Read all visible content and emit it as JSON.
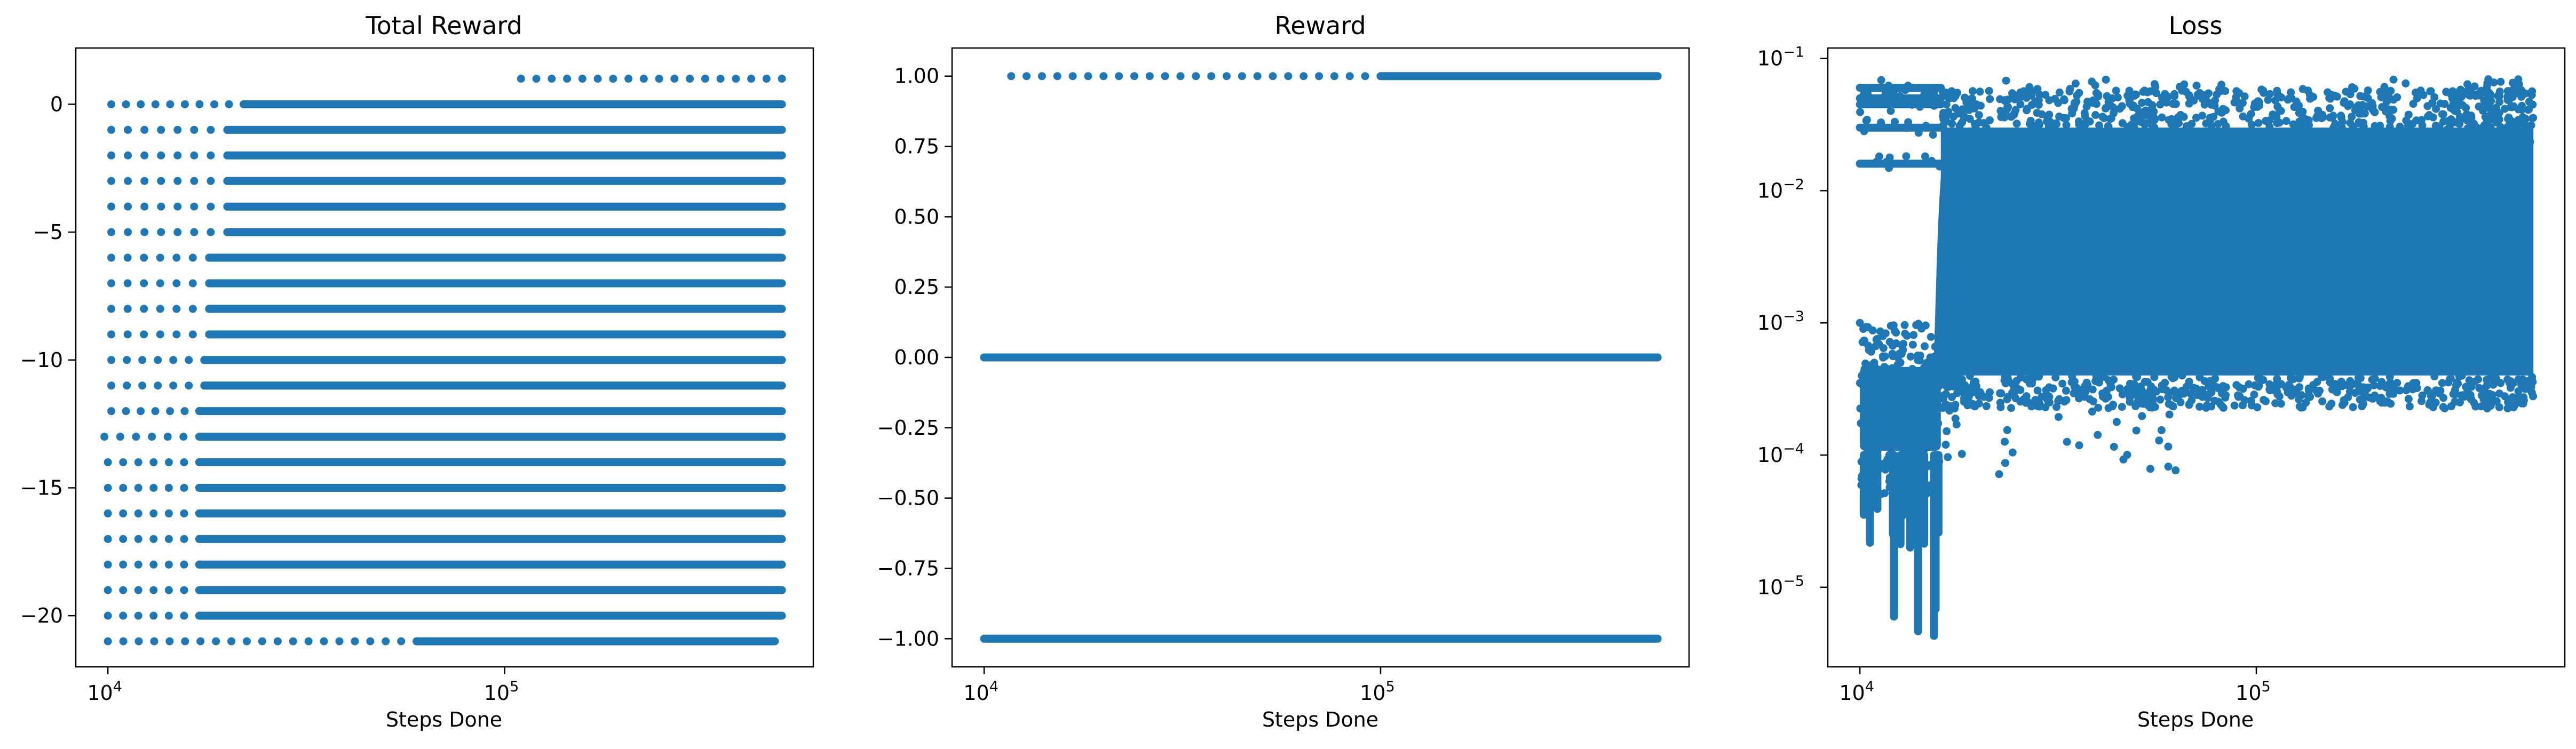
{
  "colors": {
    "marker": "#1f77b4",
    "axes": "#000000",
    "background": "#ffffff"
  },
  "chart_data": [
    {
      "type": "scatter",
      "title": "Total Reward",
      "xlabel": "Steps Done",
      "ylabel": "",
      "xscale": "log",
      "yscale": "linear",
      "xlim": [
        8300,
        600000
      ],
      "ylim": [
        -22,
        2.2
      ],
      "xticks": [
        {
          "value": 10000,
          "base": "10",
          "exp": "4"
        },
        {
          "value": 100000,
          "base": "10",
          "exp": "5"
        }
      ],
      "yticks": [
        {
          "value": 0,
          "label": "0"
        },
        {
          "value": -5,
          "label": "−5"
        },
        {
          "value": -10,
          "label": "−10"
        },
        {
          "value": -15,
          "label": "−15"
        },
        {
          "value": -20,
          "label": "−20"
        }
      ],
      "grid": false,
      "x_range": [
        10000,
        500000
      ],
      "series": [
        {
          "rows": [
            {
              "y": 1,
              "x_start": 110000,
              "x_end": 500000,
              "dense_from": 500000
            },
            {
              "y": 0,
              "x_start": 10200,
              "x_end": 500000,
              "dense_from": 22000
            },
            {
              "y": -1,
              "x_start": 10200,
              "x_end": 500000,
              "dense_from": 20000
            },
            {
              "y": -2,
              "x_start": 10200,
              "x_end": 500000,
              "dense_from": 20000
            },
            {
              "y": -3,
              "x_start": 10200,
              "x_end": 500000,
              "dense_from": 20000
            },
            {
              "y": -4,
              "x_start": 10200,
              "x_end": 500000,
              "dense_from": 20000
            },
            {
              "y": -5,
              "x_start": 10200,
              "x_end": 500000,
              "dense_from": 20000
            },
            {
              "y": -6,
              "x_start": 10200,
              "x_end": 500000,
              "dense_from": 18000
            },
            {
              "y": -7,
              "x_start": 10200,
              "x_end": 500000,
              "dense_from": 18000
            },
            {
              "y": -8,
              "x_start": 10200,
              "x_end": 500000,
              "dense_from": 18000
            },
            {
              "y": -9,
              "x_start": 10200,
              "x_end": 500000,
              "dense_from": 18000
            },
            {
              "y": -10,
              "x_start": 10200,
              "x_end": 500000,
              "dense_from": 17500
            },
            {
              "y": -11,
              "x_start": 10200,
              "x_end": 500000,
              "dense_from": 17500
            },
            {
              "y": -12,
              "x_start": 10200,
              "x_end": 500000,
              "dense_from": 17000
            },
            {
              "y": -13,
              "x_start": 9800,
              "x_end": 500000,
              "dense_from": 17000
            },
            {
              "y": -14,
              "x_start": 10000,
              "x_end": 500000,
              "dense_from": 17000
            },
            {
              "y": -15,
              "x_start": 10000,
              "x_end": 500000,
              "dense_from": 17000
            },
            {
              "y": -16,
              "x_start": 10000,
              "x_end": 500000,
              "dense_from": 17000
            },
            {
              "y": -17,
              "x_start": 10000,
              "x_end": 500000,
              "dense_from": 17000
            },
            {
              "y": -18,
              "x_start": 10000,
              "x_end": 500000,
              "dense_from": 17000
            },
            {
              "y": -19,
              "x_start": 10000,
              "x_end": 500000,
              "dense_from": 17000
            },
            {
              "y": -20,
              "x_start": 10000,
              "x_end": 500000,
              "dense_from": 17000
            },
            {
              "y": -21,
              "x_start": 10000,
              "x_end": 480000,
              "dense_from": 60000
            }
          ]
        }
      ]
    },
    {
      "type": "scatter",
      "title": "Reward",
      "xlabel": "Steps Done",
      "ylabel": "",
      "xscale": "log",
      "yscale": "linear",
      "xlim": [
        8300,
        600000
      ],
      "ylim": [
        -1.1,
        1.1
      ],
      "xticks": [
        {
          "value": 10000,
          "base": "10",
          "exp": "4"
        },
        {
          "value": 100000,
          "base": "10",
          "exp": "5"
        }
      ],
      "yticks": [
        {
          "value": 1,
          "label": "1.00"
        },
        {
          "value": 0.75,
          "label": "0.75"
        },
        {
          "value": 0.5,
          "label": "0.50"
        },
        {
          "value": 0.25,
          "label": "0.25"
        },
        {
          "value": 0,
          "label": "0.00"
        },
        {
          "value": -0.25,
          "label": "−0.25"
        },
        {
          "value": -0.5,
          "label": "−0.50"
        },
        {
          "value": -0.75,
          "label": "−0.75"
        },
        {
          "value": -1,
          "label": "−1.00"
        }
      ],
      "grid": false,
      "x_range": [
        10000,
        500000
      ],
      "series": [
        {
          "rows": [
            {
              "y": 1,
              "x_start": 11700,
              "x_end": 500000,
              "dense_from": 100000
            },
            {
              "y": 0,
              "x_start": 10000,
              "x_end": 500000,
              "dense_from": 10000
            },
            {
              "y": -1,
              "x_start": 10000,
              "x_end": 500000,
              "dense_from": 10000
            }
          ]
        }
      ]
    },
    {
      "type": "scatter",
      "title": "Loss",
      "xlabel": "Steps Done",
      "ylabel": "",
      "xscale": "log",
      "yscale": "log",
      "xlim": [
        8300,
        600000
      ],
      "ylim": [
        2.5e-06,
        0.12
      ],
      "xticks": [
        {
          "value": 10000,
          "base": "10",
          "exp": "4"
        },
        {
          "value": 100000,
          "base": "10",
          "exp": "5"
        }
      ],
      "yticks": [
        {
          "value": 0.1,
          "base": "10",
          "exp": "−1"
        },
        {
          "value": 0.01,
          "base": "10",
          "exp": "−2"
        },
        {
          "value": 0.001,
          "base": "10",
          "exp": "−3"
        },
        {
          "value": 0.0001,
          "base": "10",
          "exp": "−4"
        },
        {
          "value": 1e-05,
          "base": "10",
          "exp": "−5"
        }
      ],
      "grid": false,
      "x_range": [
        10000,
        500000
      ],
      "series": [
        {
          "phases": [
            {
              "x_range": [
                10000,
                16000
              ],
              "y_range": [
                0.0001,
                0.0005
              ],
              "outliers_y_min": 4e-06
            },
            {
              "x_range": [
                10000,
                16000
              ],
              "bands_y": [
                0.06,
                0.05,
                0.045,
                0.03,
                0.016
              ]
            },
            {
              "x_range": [
                16000,
                500000
              ],
              "y_range": [
                0.0004,
                0.03
              ],
              "outliers_y_max": 0.07,
              "outliers_y_min": 7e-05
            }
          ]
        }
      ]
    }
  ]
}
